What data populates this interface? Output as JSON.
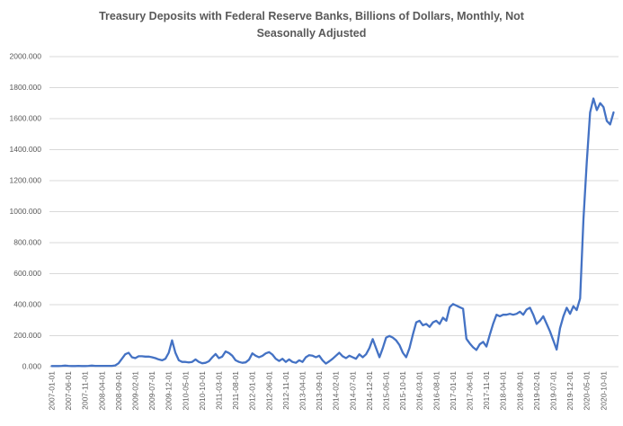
{
  "title_line1": "Treasury Deposits with Federal Reserve Banks, Billions of Dollars, Monthly, Not",
  "title_line2": "Seasonally Adjusted",
  "colors": {
    "line": "#4472C4",
    "grid": "#D9D9D9",
    "axis_label": "#595959",
    "title": "#595959",
    "background": "#FFFFFF"
  },
  "chart_data": {
    "type": "line",
    "title": "Treasury Deposits with Federal Reserve Banks, Billions of Dollars, Monthly, Not Seasonally Adjusted",
    "xlabel": "",
    "ylabel": "",
    "ylim": [
      0,
      2000
    ],
    "y_ticks": [
      0,
      200,
      400,
      600,
      800,
      1000,
      1200,
      1400,
      1600,
      1800,
      2000
    ],
    "y_tick_labels": [
      "0.000",
      "200.000",
      "400.000",
      "600.000",
      "800.000",
      "1000.000",
      "1200.000",
      "1400.000",
      "1600.000",
      "1800.000",
      "2000.000"
    ],
    "grid": "horizontal-only",
    "legend": "none",
    "x_tick_every_months": 5,
    "x_tick_labels": [
      "2007-01-01",
      "2007-06-01",
      "2007-11-01",
      "2008-04-01",
      "2008-09-01",
      "2009-02-01",
      "2009-07-01",
      "2009-12-01",
      "2010-05-01",
      "2010-10-01",
      "2011-03-01",
      "2011-08-01",
      "2012-01-01",
      "2012-06-01",
      "2012-11-01",
      "2013-04-01",
      "2013-09-01",
      "2014-02-01",
      "2014-07-01",
      "2014-12-01",
      "2015-05-01",
      "2015-10-01",
      "2016-03-01",
      "2016-08-01",
      "2017-01-01",
      "2017-06-01",
      "2017-11-01",
      "2018-04-01",
      "2018-09-01",
      "2019-02-01",
      "2019-07-01",
      "2019-12-01",
      "2020-05-01",
      "2020-10-01"
    ],
    "x": [
      "2007-01-01",
      "2007-02-01",
      "2007-03-01",
      "2007-04-01",
      "2007-05-01",
      "2007-06-01",
      "2007-07-01",
      "2007-08-01",
      "2007-09-01",
      "2007-10-01",
      "2007-11-01",
      "2007-12-01",
      "2008-01-01",
      "2008-02-01",
      "2008-03-01",
      "2008-04-01",
      "2008-05-01",
      "2008-06-01",
      "2008-07-01",
      "2008-08-01",
      "2008-09-01",
      "2008-10-01",
      "2008-11-01",
      "2008-12-01",
      "2009-01-01",
      "2009-02-01",
      "2009-03-01",
      "2009-04-01",
      "2009-05-01",
      "2009-06-01",
      "2009-07-01",
      "2009-08-01",
      "2009-09-01",
      "2009-10-01",
      "2009-11-01",
      "2009-12-01",
      "2010-01-01",
      "2010-02-01",
      "2010-03-01",
      "2010-04-01",
      "2010-05-01",
      "2010-06-01",
      "2010-07-01",
      "2010-08-01",
      "2010-09-01",
      "2010-10-01",
      "2010-11-01",
      "2010-12-01",
      "2011-01-01",
      "2011-02-01",
      "2011-03-01",
      "2011-04-01",
      "2011-05-01",
      "2011-06-01",
      "2011-07-01",
      "2011-08-01",
      "2011-09-01",
      "2011-10-01",
      "2011-11-01",
      "2011-12-01",
      "2012-01-01",
      "2012-02-01",
      "2012-03-01",
      "2012-04-01",
      "2012-05-01",
      "2012-06-01",
      "2012-07-01",
      "2012-08-01",
      "2012-09-01",
      "2012-10-01",
      "2012-11-01",
      "2012-12-01",
      "2013-01-01",
      "2013-02-01",
      "2013-03-01",
      "2013-04-01",
      "2013-05-01",
      "2013-06-01",
      "2013-07-01",
      "2013-08-01",
      "2013-09-01",
      "2013-10-01",
      "2013-11-01",
      "2013-12-01",
      "2014-01-01",
      "2014-02-01",
      "2014-03-01",
      "2014-04-01",
      "2014-05-01",
      "2014-06-01",
      "2014-07-01",
      "2014-08-01",
      "2014-09-01",
      "2014-10-01",
      "2014-11-01",
      "2014-12-01",
      "2015-01-01",
      "2015-02-01",
      "2015-03-01",
      "2015-04-01",
      "2015-05-01",
      "2015-06-01",
      "2015-07-01",
      "2015-08-01",
      "2015-09-01",
      "2015-10-01",
      "2015-11-01",
      "2015-12-01",
      "2016-01-01",
      "2016-02-01",
      "2016-03-01",
      "2016-04-01",
      "2016-05-01",
      "2016-06-01",
      "2016-07-01",
      "2016-08-01",
      "2016-09-01",
      "2016-10-01",
      "2016-11-01",
      "2016-12-01",
      "2017-01-01",
      "2017-02-01",
      "2017-03-01",
      "2017-04-01",
      "2017-05-01",
      "2017-06-01",
      "2017-07-01",
      "2017-08-01",
      "2017-09-01",
      "2017-10-01",
      "2017-11-01",
      "2017-12-01",
      "2018-01-01",
      "2018-02-01",
      "2018-03-01",
      "2018-04-01",
      "2018-05-01",
      "2018-06-01",
      "2018-07-01",
      "2018-08-01",
      "2018-09-01",
      "2018-10-01",
      "2018-11-01",
      "2018-12-01",
      "2019-01-01",
      "2019-02-01",
      "2019-03-01",
      "2019-04-01",
      "2019-05-01",
      "2019-06-01",
      "2019-07-01",
      "2019-08-01",
      "2019-09-01",
      "2019-10-01",
      "2019-11-01",
      "2019-12-01",
      "2020-01-01",
      "2020-02-01",
      "2020-03-01",
      "2020-04-01",
      "2020-05-01",
      "2020-06-01",
      "2020-07-01",
      "2020-08-01",
      "2020-09-01",
      "2020-10-01",
      "2020-11-01",
      "2020-12-01",
      "2021-01-01"
    ],
    "values": [
      4,
      4,
      4,
      5,
      7,
      5,
      4,
      4,
      5,
      4,
      4,
      5,
      7,
      5,
      5,
      5,
      5,
      5,
      5,
      8,
      22,
      51,
      80,
      90,
      61,
      55,
      67,
      67,
      65,
      65,
      61,
      55,
      47,
      41,
      51,
      90,
      170,
      90,
      41,
      31,
      31,
      27,
      31,
      47,
      31,
      22,
      25,
      35,
      60,
      82,
      55,
      65,
      98,
      88,
      71,
      41,
      31,
      25,
      28,
      45,
      86,
      71,
      61,
      70,
      86,
      94,
      78,
      51,
      37,
      51,
      31,
      47,
      31,
      25,
      41,
      31,
      61,
      74,
      71,
      61,
      71,
      41,
      20,
      35,
      51,
      71,
      90,
      67,
      55,
      71,
      61,
      51,
      80,
      61,
      80,
      120,
      178,
      120,
      61,
      120,
      188,
      198,
      188,
      169,
      139,
      90,
      61,
      120,
      208,
      286,
      296,
      267,
      276,
      257,
      286,
      296,
      276,
      316,
      296,
      384,
      404,
      394,
      384,
      374,
      180,
      150,
      125,
      108,
      145,
      160,
      130,
      205,
      276,
      335,
      325,
      335,
      335,
      341,
      335,
      341,
      355,
      335,
      368,
      380,
      335,
      276,
      296,
      325,
      276,
      227,
      169,
      110,
      247,
      325,
      380,
      341,
      390,
      365,
      440,
      950,
      1320,
      1640,
      1730,
      1655,
      1700,
      1675,
      1585,
      1563,
      1640
    ]
  }
}
